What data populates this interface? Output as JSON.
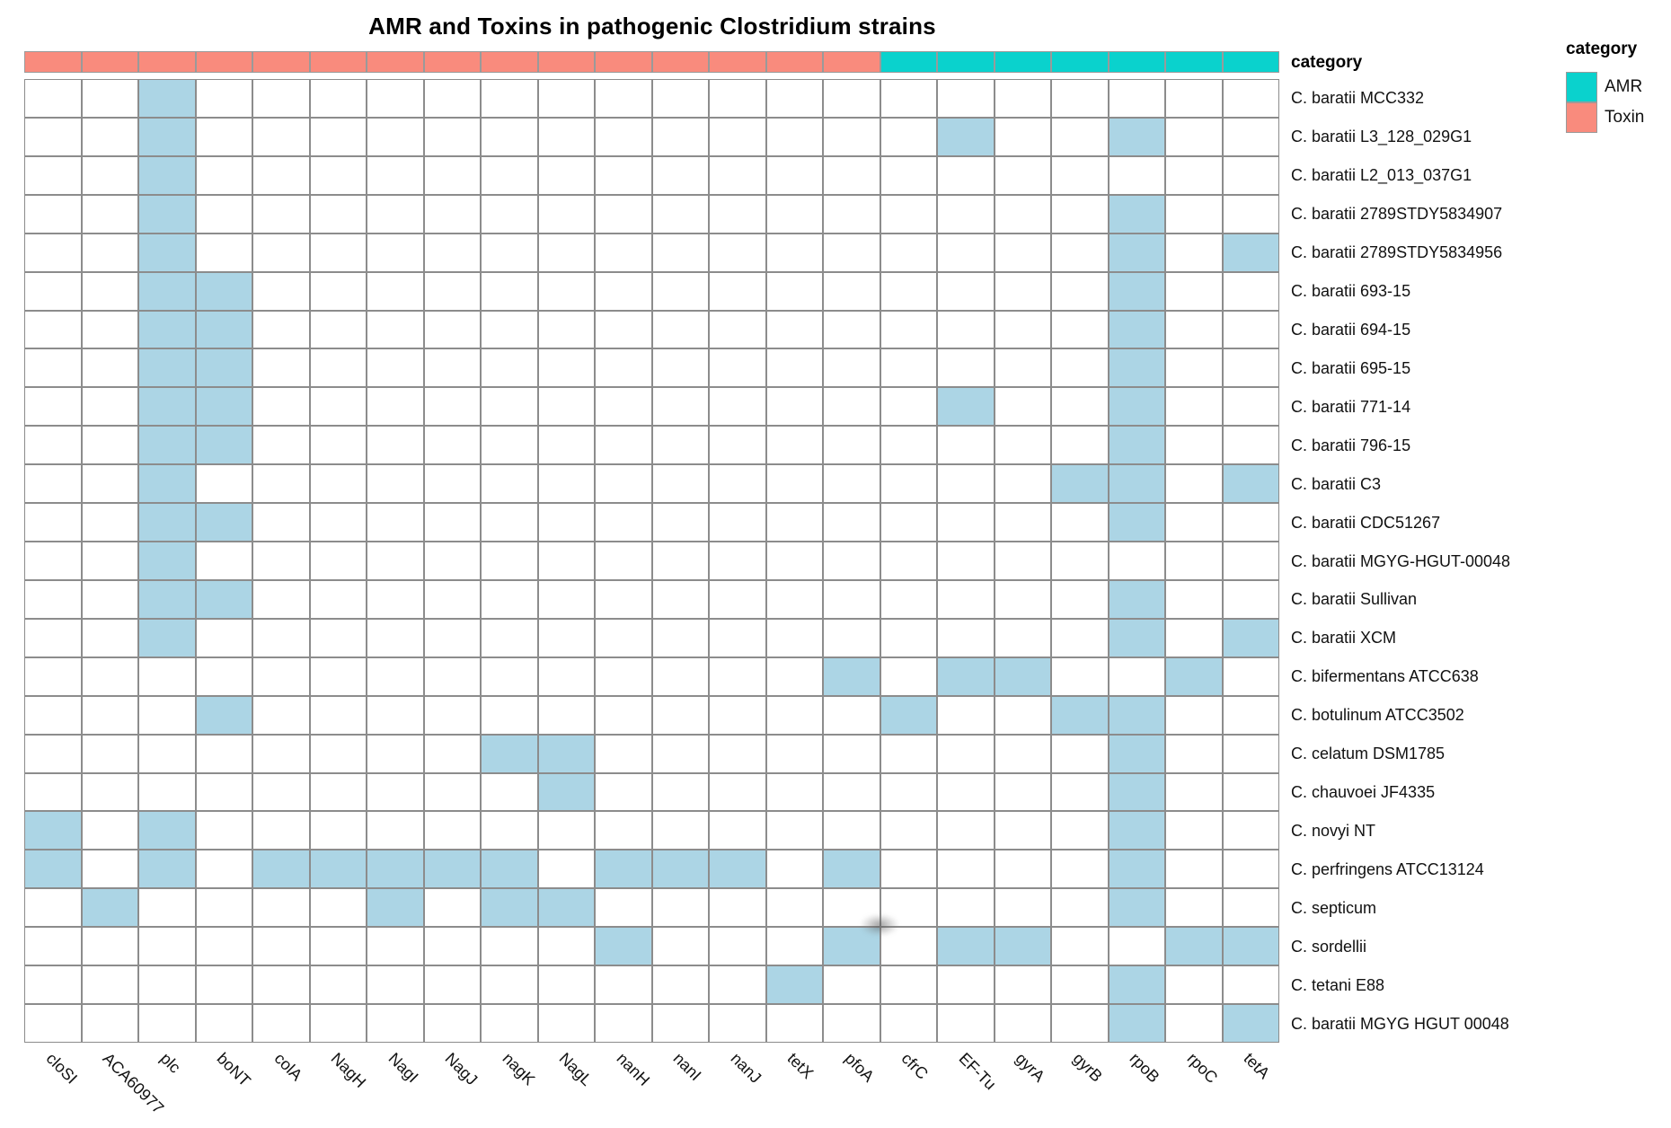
{
  "title": "AMR and Toxins in pathogenic Clostridium strains",
  "annotation_header": "category",
  "legend": {
    "title": "category",
    "items": [
      {
        "label": "AMR",
        "color": "#0ad2cd"
      },
      {
        "label": "Toxin",
        "color": "#f98b7d"
      }
    ]
  },
  "colors": {
    "filled_cell": "#acd5e5",
    "empty_cell": "#ffffff",
    "grid_line": "#8c8c8c",
    "amr": "#0ad2cd",
    "toxin": "#f98b7d"
  },
  "chart_data": {
    "type": "heatmap",
    "title": "AMR and Toxins in pathogenic Clostridium strains",
    "legend_position": "top-right",
    "value_encoding": "presence (light blue) / absence (white)",
    "columns": [
      {
        "label": "cloSI",
        "category": "Toxin"
      },
      {
        "label": "ACA60977",
        "category": "Toxin"
      },
      {
        "label": "plc",
        "category": "Toxin"
      },
      {
        "label": "boNT",
        "category": "Toxin"
      },
      {
        "label": "colA",
        "category": "Toxin"
      },
      {
        "label": "NagH",
        "category": "Toxin"
      },
      {
        "label": "NagI",
        "category": "Toxin"
      },
      {
        "label": "NagJ",
        "category": "Toxin"
      },
      {
        "label": "nagK",
        "category": "Toxin"
      },
      {
        "label": "NagL",
        "category": "Toxin"
      },
      {
        "label": "nanH",
        "category": "Toxin"
      },
      {
        "label": "nanI",
        "category": "Toxin"
      },
      {
        "label": "nanJ",
        "category": "Toxin"
      },
      {
        "label": "tetX",
        "category": "Toxin"
      },
      {
        "label": "pfoA",
        "category": "Toxin"
      },
      {
        "label": "cfrC",
        "category": "AMR"
      },
      {
        "label": "EF-Tu",
        "category": "AMR"
      },
      {
        "label": "gyrA",
        "category": "AMR"
      },
      {
        "label": "gyrB",
        "category": "AMR"
      },
      {
        "label": "rpoB",
        "category": "AMR"
      },
      {
        "label": "rpoC",
        "category": "AMR"
      },
      {
        "label": "tetA",
        "category": "AMR"
      }
    ],
    "rows": [
      {
        "label": "C. baratii MCC332",
        "present": [
          "plc"
        ]
      },
      {
        "label": "C. baratii L3_128_029G1",
        "present": [
          "plc",
          "EF-Tu",
          "rpoB"
        ]
      },
      {
        "label": "C. baratii L2_013_037G1",
        "present": [
          "plc"
        ]
      },
      {
        "label": "C. baratii 2789STDY5834907",
        "present": [
          "plc",
          "rpoB"
        ]
      },
      {
        "label": "C. baratii 2789STDY5834956",
        "present": [
          "plc",
          "rpoB",
          "tetA"
        ]
      },
      {
        "label": "C. baratii 693-15",
        "present": [
          "plc",
          "boNT",
          "rpoB"
        ]
      },
      {
        "label": "C. baratii 694-15",
        "present": [
          "plc",
          "boNT",
          "rpoB"
        ]
      },
      {
        "label": "C. baratii 695-15",
        "present": [
          "plc",
          "boNT",
          "rpoB"
        ]
      },
      {
        "label": "C. baratii 771-14",
        "present": [
          "plc",
          "boNT",
          "EF-Tu",
          "rpoB"
        ]
      },
      {
        "label": "C. baratii 796-15",
        "present": [
          "plc",
          "boNT",
          "rpoB"
        ]
      },
      {
        "label": "C. baratii C3",
        "present": [
          "plc",
          "gyrB",
          "rpoB",
          "tetA"
        ]
      },
      {
        "label": "C. baratii CDC51267",
        "present": [
          "plc",
          "boNT",
          "rpoB"
        ]
      },
      {
        "label": "C. baratii MGYG-HGUT-00048",
        "present": [
          "plc"
        ]
      },
      {
        "label": "C. baratii Sullivan",
        "present": [
          "plc",
          "boNT",
          "rpoB"
        ]
      },
      {
        "label": "C. baratii XCM",
        "present": [
          "plc",
          "rpoB",
          "tetA"
        ]
      },
      {
        "label": "C. bifermentans ATCC638",
        "present": [
          "pfoA",
          "EF-Tu",
          "gyrA",
          "rpoC"
        ]
      },
      {
        "label": "C. botulinum ATCC3502",
        "present": [
          "boNT",
          "cfrC",
          "gyrB",
          "rpoB"
        ]
      },
      {
        "label": "C. celatum DSM1785",
        "present": [
          "nagK",
          "NagL",
          "rpoB"
        ]
      },
      {
        "label": "C. chauvoei JF4335",
        "present": [
          "NagL",
          "rpoB"
        ]
      },
      {
        "label": "C. novyi NT",
        "present": [
          "cloSI",
          "plc",
          "rpoB"
        ]
      },
      {
        "label": "C. perfringens ATCC13124",
        "present": [
          "cloSI",
          "plc",
          "colA",
          "NagH",
          "NagI",
          "NagJ",
          "nagK",
          "nanH",
          "nanI",
          "nanJ",
          "pfoA",
          "rpoB"
        ]
      },
      {
        "label": "C. septicum",
        "present": [
          "ACA60977",
          "NagI",
          "nagK",
          "NagL",
          "rpoB"
        ]
      },
      {
        "label": "C. sordellii",
        "present": [
          "nanH",
          "pfoA",
          "EF-Tu",
          "gyrA",
          "rpoC",
          "tetA"
        ]
      },
      {
        "label": "C. tetani E88",
        "present": [
          "tetX",
          "rpoB"
        ]
      },
      {
        "label": "C. baratii MGYG HGUT 00048",
        "present": [
          "rpoB",
          "tetA"
        ]
      }
    ]
  }
}
